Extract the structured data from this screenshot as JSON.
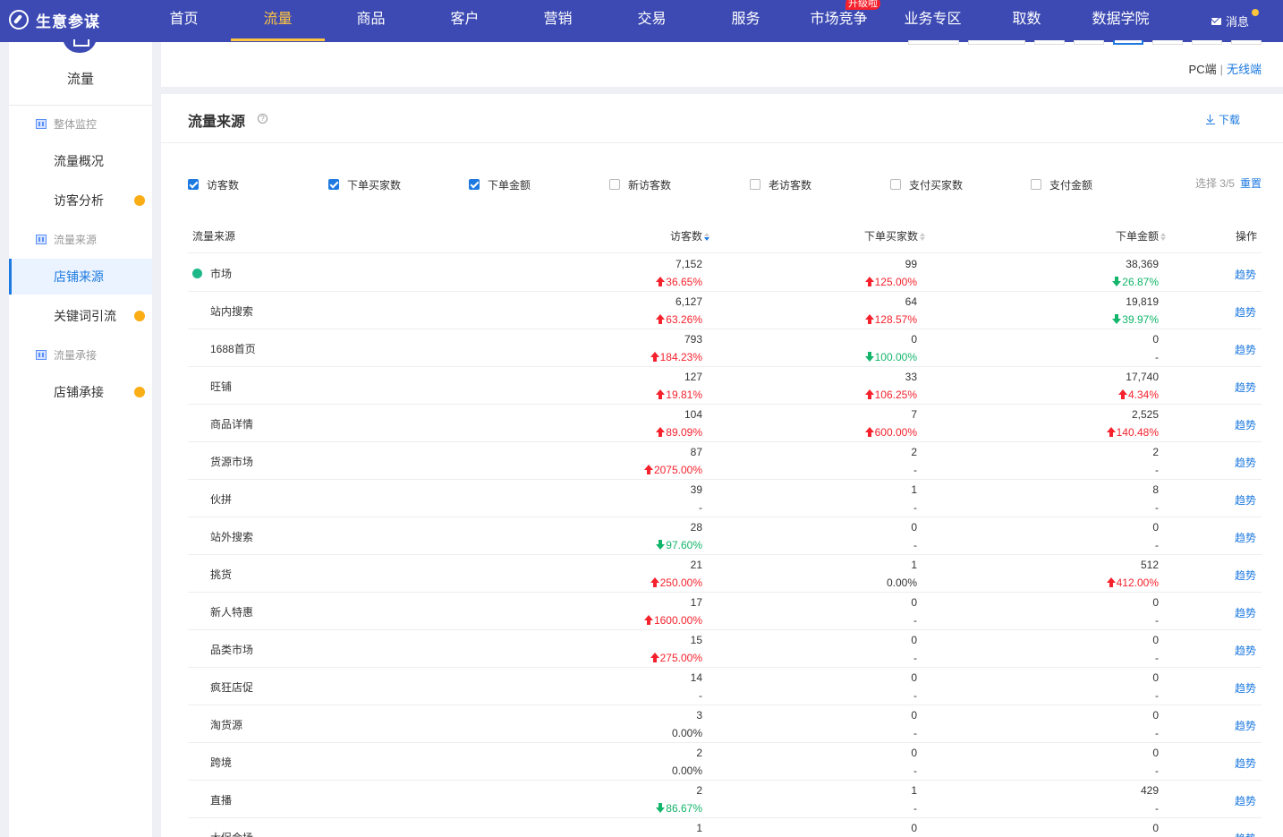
{
  "app": {
    "title": "生意参谋"
  },
  "nav": {
    "items": [
      {
        "label": "首页"
      },
      {
        "label": "流量"
      },
      {
        "label": "商品"
      },
      {
        "label": "客户"
      },
      {
        "label": "营销"
      },
      {
        "label": "交易"
      },
      {
        "label": "服务"
      },
      {
        "label": "市场竞争",
        "badge": "升级啦"
      },
      {
        "label": "业务专区"
      },
      {
        "label": "取数"
      },
      {
        "label": "数据学院"
      }
    ],
    "active": "流量",
    "message": "消息",
    "colors": {
      "bar": "#3d4ab3",
      "active": "#ffc53d"
    }
  },
  "sidebar": {
    "title": "流量",
    "groups": [
      {
        "label": "整体监控"
      },
      {
        "label": "流量来源"
      },
      {
        "label": "流量承接"
      }
    ],
    "items": [
      {
        "label": "流量概况"
      },
      {
        "label": "访客分析"
      },
      {
        "label": "店铺来源"
      },
      {
        "label": "关键词引流"
      },
      {
        "label": "店铺承接"
      }
    ],
    "active": "店铺来源"
  },
  "device_toggle": {
    "pc": "PC端",
    "separator": "|",
    "wireless": "无线端"
  },
  "panel": {
    "title": "流量来源",
    "help": "?",
    "download": "下载",
    "metrics": [
      {
        "label": "访客数",
        "checked": true
      },
      {
        "label": "下单买家数",
        "checked": true
      },
      {
        "label": "下单金额",
        "checked": true
      },
      {
        "label": "新访客数",
        "checked": false
      },
      {
        "label": "老访客数",
        "checked": false
      },
      {
        "label": "支付买家数",
        "checked": false
      },
      {
        "label": "支付金额",
        "checked": false
      }
    ],
    "selection": "选择 3/5",
    "reset": "重置"
  },
  "table": {
    "headers": {
      "source": "流量来源",
      "visitors": "访客数",
      "buyers": "下单买家数",
      "amount": "下单金额",
      "action": "操作"
    },
    "rows": [
      {
        "name": "市场",
        "v": "7,152",
        "vc": "36.65%",
        "vd": "up",
        "b": "99",
        "bc": "125.00%",
        "bd": "up",
        "a": "38,369",
        "ac": "26.87%",
        "ad": "down",
        "op": "趋势"
      },
      {
        "name": "站内搜索",
        "v": "6,127",
        "vc": "63.26%",
        "vd": "up",
        "b": "64",
        "bc": "128.57%",
        "bd": "up",
        "a": "19,819",
        "ac": "39.97%",
        "ad": "down",
        "op": "趋势"
      },
      {
        "name": "1688首页",
        "v": "793",
        "vc": "184.23%",
        "vd": "up",
        "b": "0",
        "bc": "100.00%",
        "bd": "down",
        "a": "0",
        "ac": "-",
        "ad": "flat",
        "op": "趋势"
      },
      {
        "name": "旺铺",
        "v": "127",
        "vc": "19.81%",
        "vd": "up",
        "b": "33",
        "bc": "106.25%",
        "bd": "up",
        "a": "17,740",
        "ac": "4.34%",
        "ad": "up",
        "op": "趋势"
      },
      {
        "name": "商品详情",
        "v": "104",
        "vc": "89.09%",
        "vd": "up",
        "b": "7",
        "bc": "600.00%",
        "bd": "up",
        "a": "2,525",
        "ac": "140.48%",
        "ad": "up",
        "op": "趋势"
      },
      {
        "name": "货源市场",
        "v": "87",
        "vc": "2075.00%",
        "vd": "up",
        "b": "2",
        "bc": "-",
        "bd": "flat",
        "a": "2",
        "ac": "-",
        "ad": "flat",
        "op": "趋势"
      },
      {
        "name": "伙拼",
        "v": "39",
        "vc": "-",
        "vd": "flat",
        "b": "1",
        "bc": "-",
        "bd": "flat",
        "a": "8",
        "ac": "-",
        "ad": "flat",
        "op": "趋势"
      },
      {
        "name": "站外搜索",
        "v": "28",
        "vc": "97.60%",
        "vd": "down",
        "b": "0",
        "bc": "-",
        "bd": "flat",
        "a": "0",
        "ac": "-",
        "ad": "flat",
        "op": "趋势"
      },
      {
        "name": "挑货",
        "v": "21",
        "vc": "250.00%",
        "vd": "up",
        "b": "1",
        "bc": "0.00%",
        "bd": "flat",
        "a": "512",
        "ac": "412.00%",
        "ad": "up",
        "op": "趋势"
      },
      {
        "name": "新人特惠",
        "v": "17",
        "vc": "1600.00%",
        "vd": "up",
        "b": "0",
        "bc": "-",
        "bd": "flat",
        "a": "0",
        "ac": "-",
        "ad": "flat",
        "op": "趋势"
      },
      {
        "name": "品类市场",
        "v": "15",
        "vc": "275.00%",
        "vd": "up",
        "b": "0",
        "bc": "-",
        "bd": "flat",
        "a": "0",
        "ac": "-",
        "ad": "flat",
        "op": "趋势"
      },
      {
        "name": "疯狂店促",
        "v": "14",
        "vc": "-",
        "vd": "flat",
        "b": "0",
        "bc": "-",
        "bd": "flat",
        "a": "0",
        "ac": "-",
        "ad": "flat",
        "op": "趋势"
      },
      {
        "name": "淘货源",
        "v": "3",
        "vc": "0.00%",
        "vd": "flat",
        "b": "0",
        "bc": "-",
        "bd": "flat",
        "a": "0",
        "ac": "-",
        "ad": "flat",
        "op": "趋势"
      },
      {
        "name": "跨境",
        "v": "2",
        "vc": "0.00%",
        "vd": "flat",
        "b": "0",
        "bc": "-",
        "bd": "flat",
        "a": "0",
        "ac": "-",
        "ad": "flat",
        "op": "趋势"
      },
      {
        "name": "直播",
        "v": "2",
        "vc": "86.67%",
        "vd": "down",
        "b": "1",
        "bc": "-",
        "bd": "flat",
        "a": "429",
        "ac": "-",
        "ad": "flat",
        "op": "趋势"
      },
      {
        "name": "大促会场",
        "v": "1",
        "vc": "",
        "vd": "flat",
        "b": "0",
        "bc": "",
        "bd": "flat",
        "a": "0",
        "ac": "",
        "ad": "flat",
        "op": "趋势"
      }
    ]
  }
}
